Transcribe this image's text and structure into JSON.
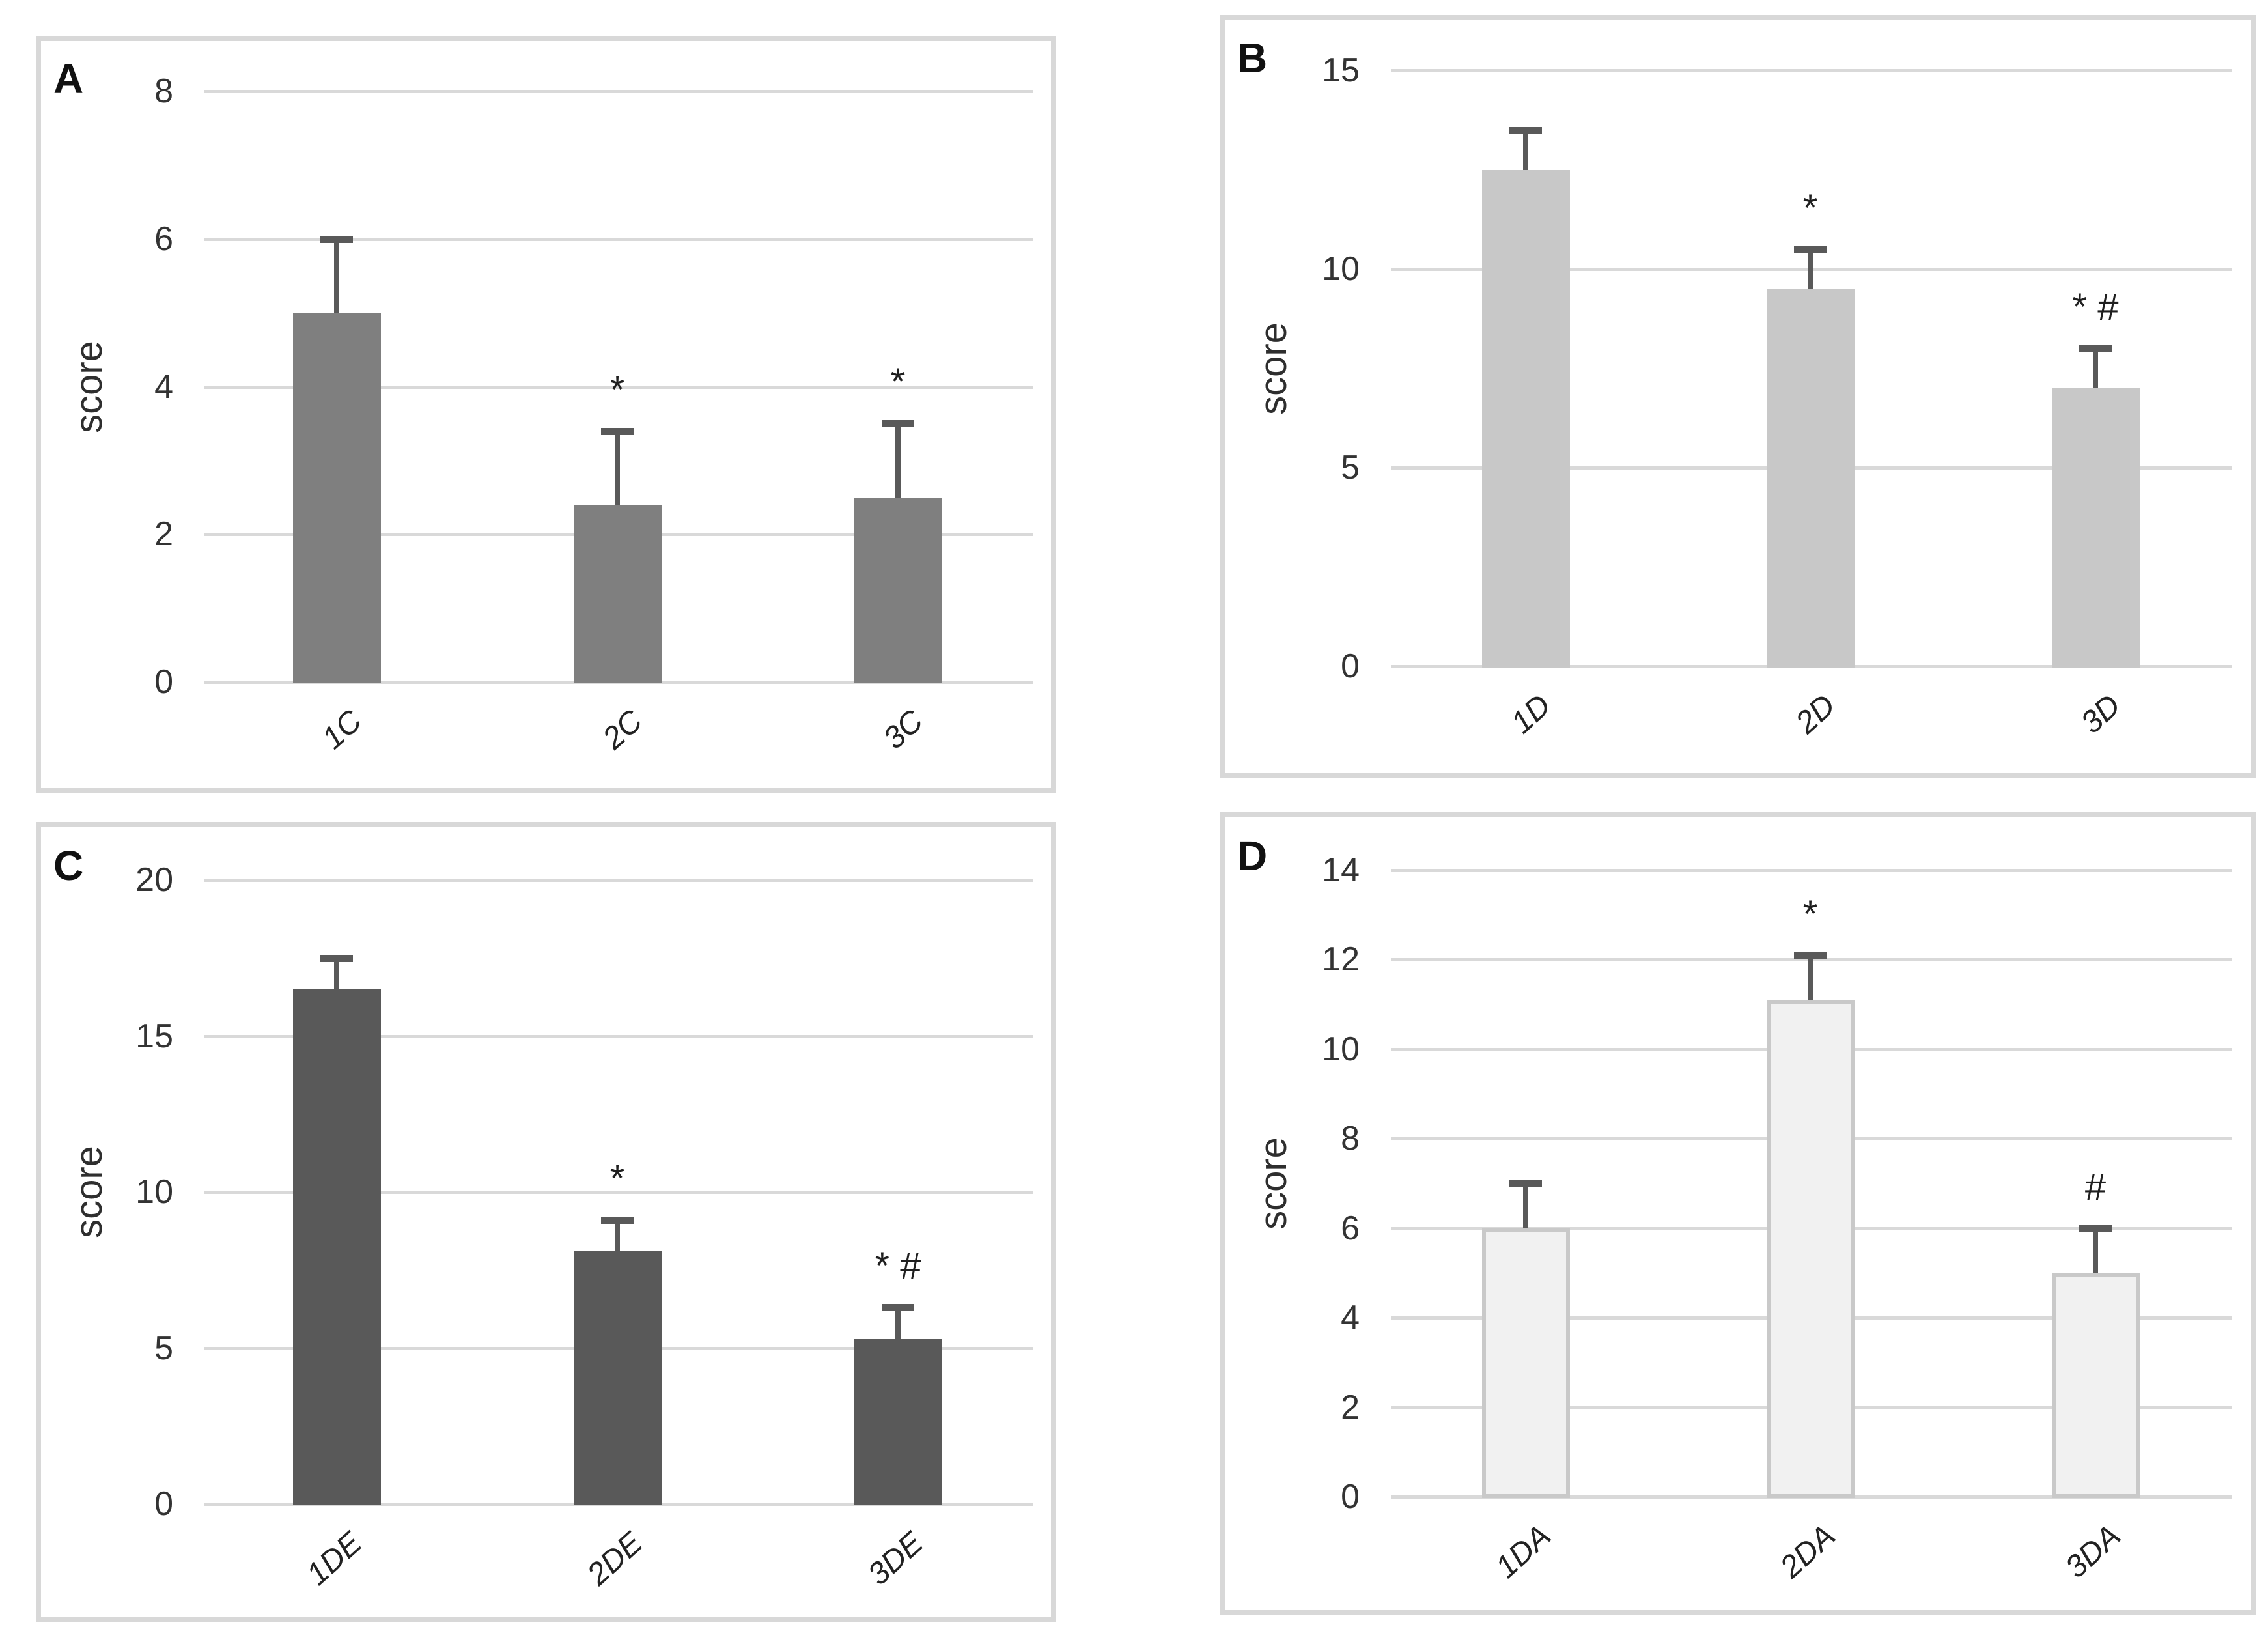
{
  "figure": {
    "background": "#ffffff",
    "grid_color": "#d9d9d9",
    "error_bar_color": "#595959",
    "text_color": "#333333"
  },
  "chart_data": [
    {
      "type": "bar",
      "panel": "A",
      "title": "",
      "xlabel": "",
      "ylabel": "score",
      "ylim": [
        0,
        8
      ],
      "yticks": [
        0,
        2,
        4,
        6,
        8
      ],
      "grid": true,
      "legend": false,
      "categories": [
        "1C",
        "2C",
        "3C"
      ],
      "values": [
        5.0,
        2.4,
        2.5
      ],
      "errors_plus": [
        1.0,
        1.0,
        1.0
      ],
      "annotations": [
        "",
        "*",
        "*"
      ],
      "bar_color": "#7f7f7f",
      "bar_border": ""
    },
    {
      "type": "bar",
      "panel": "B",
      "title": "",
      "xlabel": "",
      "ylabel": "score",
      "ylim": [
        0,
        15
      ],
      "yticks": [
        0,
        5,
        10,
        15
      ],
      "grid": true,
      "legend": false,
      "categories": [
        "1D",
        "2D",
        "3D"
      ],
      "values": [
        12.5,
        9.5,
        7.0
      ],
      "errors_plus": [
        1.0,
        1.0,
        1.0
      ],
      "annotations": [
        "",
        "*",
        "* #"
      ],
      "bar_color": "#c8c8c8",
      "bar_border": ""
    },
    {
      "type": "bar",
      "panel": "C",
      "title": "",
      "xlabel": "",
      "ylabel": "score",
      "ylim": [
        0,
        20
      ],
      "yticks": [
        0,
        5,
        10,
        15,
        20
      ],
      "grid": true,
      "legend": false,
      "categories": [
        "1DE",
        "2DE",
        "3DE"
      ],
      "values": [
        16.5,
        8.1,
        5.3
      ],
      "errors_plus": [
        1.0,
        1.0,
        1.0
      ],
      "annotations": [
        "",
        "*",
        "* #"
      ],
      "bar_color": "#595959",
      "bar_border": ""
    },
    {
      "type": "bar",
      "panel": "D",
      "title": "",
      "xlabel": "",
      "ylabel": "score",
      "ylim": [
        0,
        14
      ],
      "yticks": [
        0,
        2,
        4,
        6,
        8,
        10,
        12,
        14
      ],
      "grid": true,
      "legend": false,
      "categories": [
        "1DA",
        "2DA",
        "3DA"
      ],
      "values": [
        6.0,
        11.1,
        5.0
      ],
      "errors_plus": [
        1.0,
        1.0,
        1.0
      ],
      "annotations": [
        "",
        "*",
        "#"
      ],
      "bar_color": "#f1f1f1",
      "bar_border": "#c9c9c9"
    }
  ]
}
